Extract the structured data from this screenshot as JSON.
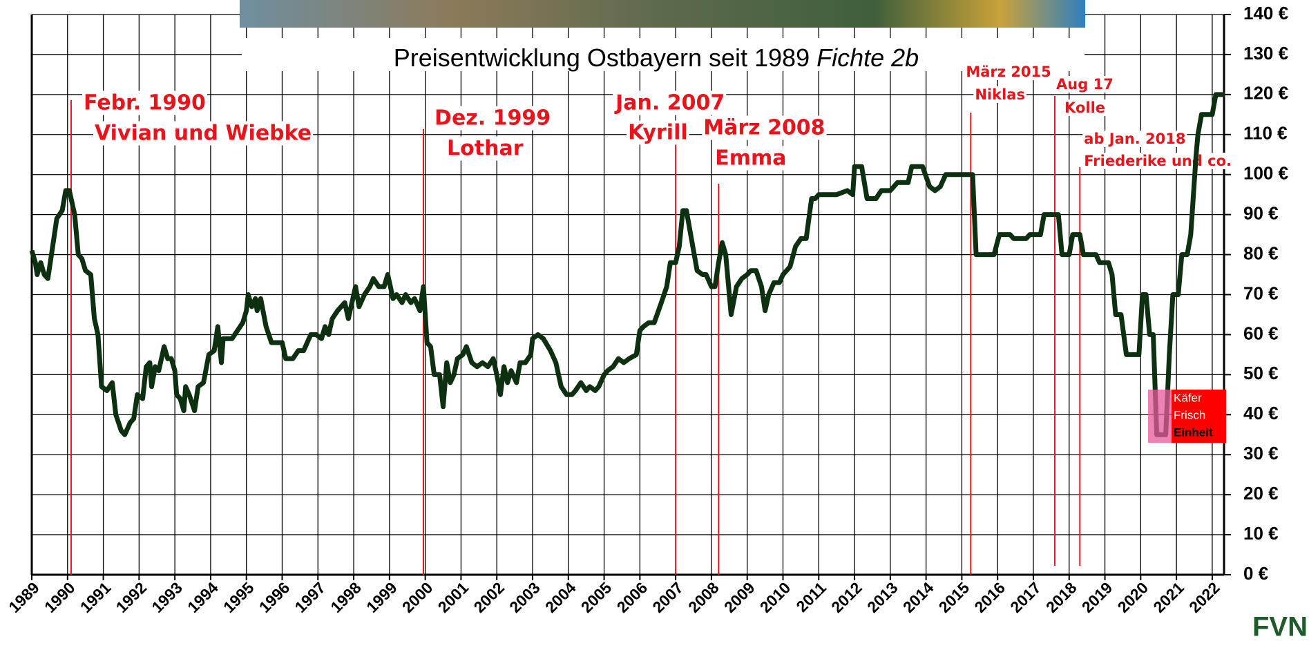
{
  "chart_data": {
    "type": "line",
    "title": "Preisentwicklung Ostbayern seit 1989",
    "title_italic": "Fichte 2b",
    "logo": "FVN",
    "xlim": [
      1989,
      2022.33
    ],
    "xticks": [
      1989,
      1990,
      1991,
      1992,
      1993,
      1994,
      1995,
      1996,
      1997,
      1998,
      1999,
      2000,
      2001,
      2002,
      2003,
      2004,
      2005,
      2006,
      2007,
      2008,
      2009,
      2010,
      2011,
      2012,
      2013,
      2014,
      2015,
      2016,
      2017,
      2018,
      2019,
      2020,
      2021,
      2022
    ],
    "ylim": [
      0,
      140
    ],
    "yticks": [
      {
        "value": 0,
        "label": "0 €"
      },
      {
        "value": 10,
        "label": "10 €"
      },
      {
        "value": 20,
        "label": "20 €"
      },
      {
        "value": 30,
        "label": "30 €"
      },
      {
        "value": 40,
        "label": "40 €"
      },
      {
        "value": 50,
        "label": "50 €"
      },
      {
        "value": 60,
        "label": "60 €"
      },
      {
        "value": 70,
        "label": "70 €"
      },
      {
        "value": 80,
        "label": "80 €"
      },
      {
        "value": 90,
        "label": "90 €"
      },
      {
        "value": 100,
        "label": "100 €"
      },
      {
        "value": 110,
        "label": "110 €"
      },
      {
        "value": 120,
        "label": "120 €"
      },
      {
        "value": 130,
        "label": "130 €"
      },
      {
        "value": 140,
        "label": "140 €"
      }
    ],
    "grid": true,
    "x": [
      1989.0,
      1989.1,
      1989.15,
      1989.25,
      1989.35,
      1989.45,
      1989.55,
      1989.7,
      1989.85,
      1989.95,
      1990.05,
      1990.2,
      1990.3,
      1990.4,
      1990.5,
      1990.65,
      1990.75,
      1990.85,
      1990.95,
      1991.1,
      1991.25,
      1991.35,
      1991.5,
      1991.6,
      1991.75,
      1991.85,
      1991.95,
      1992.1,
      1992.2,
      1992.3,
      1992.35,
      1992.45,
      1992.55,
      1992.7,
      1992.8,
      1992.9,
      1993.0,
      1993.05,
      1993.15,
      1993.25,
      1993.3,
      1993.4,
      1993.55,
      1993.65,
      1993.8,
      1993.95,
      1994.1,
      1994.2,
      1994.3,
      1994.35,
      1994.5,
      1994.6,
      1994.75,
      1994.9,
      1995.0,
      1995.05,
      1995.15,
      1995.25,
      1995.3,
      1995.4,
      1995.55,
      1995.7,
      1995.85,
      1996.0,
      1996.1,
      1996.3,
      1996.45,
      1996.6,
      1996.8,
      1996.95,
      1997.1,
      1997.2,
      1997.3,
      1997.4,
      1997.55,
      1997.65,
      1997.75,
      1997.85,
      1997.95,
      1998.05,
      1998.15,
      1998.3,
      1998.45,
      1998.55,
      1998.7,
      1998.85,
      1998.95,
      1999.1,
      1999.2,
      1999.35,
      1999.45,
      1999.6,
      1999.7,
      1999.85,
      1999.95,
      2000.05,
      2000.15,
      2000.25,
      2000.4,
      2000.5,
      2000.6,
      2000.7,
      2000.8,
      2000.9,
      2001.05,
      2001.15,
      2001.3,
      2001.45,
      2001.6,
      2001.75,
      2001.9,
      2002.0,
      2002.1,
      2002.2,
      2002.3,
      2002.4,
      2002.55,
      2002.65,
      2002.8,
      2002.95,
      2003.0,
      2003.15,
      2003.3,
      2003.5,
      2003.65,
      2003.8,
      2003.95,
      2004.1,
      2004.2,
      2004.35,
      2004.5,
      2004.6,
      2004.75,
      2004.85,
      2005.0,
      2005.1,
      2005.25,
      2005.4,
      2005.55,
      2005.7,
      2005.9,
      2006.0,
      2006.1,
      2006.25,
      2006.4,
      2006.6,
      2006.75,
      2006.85,
      2007.0,
      2007.1,
      2007.2,
      2007.3,
      2007.5,
      2007.6,
      2007.75,
      2007.85,
      2008.0,
      2008.1,
      2008.2,
      2008.3,
      2008.4,
      2008.55,
      2008.7,
      2008.85,
      2009.0,
      2009.1,
      2009.25,
      2009.4,
      2009.5,
      2009.6,
      2009.75,
      2009.9,
      2010.0,
      2010.1,
      2010.2,
      2010.35,
      2010.5,
      2010.65,
      2010.8,
      2010.9,
      2011.0,
      2011.5,
      2011.8,
      2011.95,
      2012.0,
      2012.2,
      2012.35,
      2012.6,
      2012.75,
      2013.0,
      2013.2,
      2013.5,
      2013.6,
      2013.9,
      2014.1,
      2014.25,
      2014.4,
      2014.55,
      2015.0,
      2015.3,
      2015.4,
      2015.5,
      2015.9,
      2016.05,
      2016.35,
      2016.45,
      2016.8,
      2016.9,
      2017.2,
      2017.3,
      2017.7,
      2017.8,
      2018.0,
      2018.1,
      2018.3,
      2018.4,
      2018.75,
      2018.85,
      2019.1,
      2019.2,
      2019.3,
      2019.45,
      2019.6,
      2019.95,
      2020.05,
      2020.15,
      2020.25,
      2020.35,
      2020.45,
      2020.7,
      2020.8,
      2020.9,
      2021.05,
      2021.15,
      2021.3,
      2021.4,
      2021.55,
      2021.6,
      2021.7,
      2022.0,
      2022.1,
      2022.35
    ],
    "series": [
      {
        "color": "#0d3010",
        "values": [
          81,
          78,
          75,
          78,
          75,
          74,
          80,
          89,
          91,
          96,
          96,
          90,
          80,
          79,
          76,
          75,
          64,
          60,
          47,
          46,
          48,
          40,
          36,
          35,
          38,
          39,
          45,
          44,
          52,
          53,
          47,
          52,
          51,
          57,
          54,
          54,
          51,
          45,
          44,
          41,
          47,
          45,
          41,
          47,
          48,
          55,
          56,
          62,
          53,
          59,
          59,
          59,
          61,
          63,
          66,
          70,
          67,
          69,
          66,
          69,
          62,
          58,
          58,
          58,
          54,
          54,
          56,
          56,
          60,
          60,
          59,
          62,
          60,
          64,
          66,
          67,
          68,
          64,
          68,
          72,
          67,
          70,
          72,
          74,
          72,
          72,
          75,
          69,
          70,
          68,
          70,
          68,
          69,
          66,
          72,
          58,
          57,
          50,
          50,
          42,
          53,
          48,
          50,
          54,
          55,
          57,
          53,
          52,
          53,
          52,
          54,
          50,
          45,
          52,
          48,
          51,
          48,
          53,
          53,
          55,
          59,
          60,
          59,
          56,
          53,
          47,
          45,
          45,
          46,
          48,
          46,
          47,
          46,
          47,
          50,
          51,
          52,
          54,
          53,
          54,
          55,
          61,
          62,
          63,
          63,
          68,
          72,
          78,
          78,
          82,
          91,
          91,
          81,
          76,
          75,
          75,
          72,
          72,
          78,
          83,
          80,
          65,
          72,
          74,
          75,
          76,
          76,
          72,
          66,
          70,
          73,
          73,
          75,
          76,
          77,
          82,
          84,
          84,
          94,
          94,
          95,
          95,
          96,
          95,
          102,
          102,
          94,
          94,
          96,
          96,
          98,
          98,
          102,
          102,
          97,
          96,
          97,
          100,
          100,
          100,
          80,
          80,
          80,
          85,
          85,
          84,
          84,
          85,
          85,
          90,
          90,
          80,
          80,
          85,
          85,
          80,
          80,
          78,
          78,
          75,
          65,
          65,
          55,
          55,
          70,
          70,
          60,
          60,
          35,
          35,
          55,
          70,
          70,
          80,
          80,
          85,
          105,
          110,
          115,
          115,
          120,
          120
        ]
      }
    ],
    "annotations": [
      {
        "x": 1990.1,
        "lines": [
          "Febr. 1990",
          "Vivian und Wiebke"
        ]
      },
      {
        "x": 1999.95,
        "lines": [
          "Dez. 1999",
          "Lothar"
        ]
      },
      {
        "x": 2007.0,
        "lines": [
          "Jan. 2007",
          "Kyrill"
        ]
      },
      {
        "x": 2008.2,
        "lines": [
          "März 2008",
          "Emma"
        ]
      },
      {
        "x": 2015.25,
        "lines": [
          "März 2015",
          "Niklas"
        ]
      },
      {
        "x": 2017.6,
        "lines": [
          "Aug 17",
          "Kolle"
        ]
      },
      {
        "x": 2018.3,
        "lines": [
          "ab Jan. 2018",
          "Friederike und co."
        ]
      }
    ],
    "note": [
      "Käfer",
      "Frisch",
      "Einheit"
    ]
  }
}
